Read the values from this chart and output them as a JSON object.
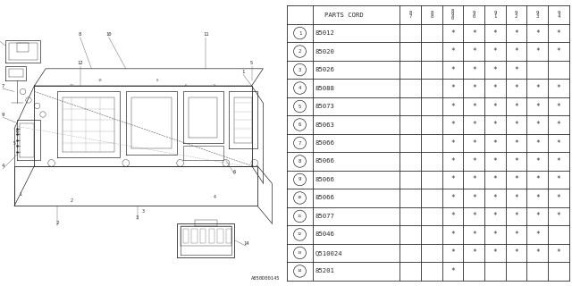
{
  "diagram_label": "A850D00145",
  "rows": [
    {
      "num": 1,
      "part": "85012",
      "marks": [
        0,
        0,
        1,
        1,
        1,
        1,
        1,
        1
      ]
    },
    {
      "num": 2,
      "part": "85020",
      "marks": [
        0,
        0,
        1,
        1,
        1,
        1,
        1,
        1
      ]
    },
    {
      "num": 3,
      "part": "85026",
      "marks": [
        0,
        0,
        1,
        1,
        1,
        1,
        0,
        0
      ]
    },
    {
      "num": 4,
      "part": "85088",
      "marks": [
        0,
        0,
        1,
        1,
        1,
        1,
        1,
        1
      ]
    },
    {
      "num": 5,
      "part": "85073",
      "marks": [
        0,
        0,
        1,
        1,
        1,
        1,
        1,
        1
      ]
    },
    {
      "num": 6,
      "part": "85063",
      "marks": [
        0,
        0,
        1,
        1,
        1,
        1,
        1,
        1
      ]
    },
    {
      "num": 7,
      "part": "85066",
      "marks": [
        0,
        0,
        1,
        1,
        1,
        1,
        1,
        1
      ]
    },
    {
      "num": 8,
      "part": "85066",
      "marks": [
        0,
        0,
        1,
        1,
        1,
        1,
        1,
        1
      ]
    },
    {
      "num": 9,
      "part": "85066",
      "marks": [
        0,
        0,
        1,
        1,
        1,
        1,
        1,
        1
      ]
    },
    {
      "num": 10,
      "part": "85066",
      "marks": [
        0,
        0,
        1,
        1,
        1,
        1,
        1,
        1
      ]
    },
    {
      "num": 11,
      "part": "85077",
      "marks": [
        0,
        0,
        1,
        1,
        1,
        1,
        1,
        1
      ]
    },
    {
      "num": 12,
      "part": "85046",
      "marks": [
        0,
        0,
        1,
        1,
        1,
        1,
        1,
        0
      ]
    },
    {
      "num": 13,
      "part": "Q510024",
      "marks": [
        0,
        0,
        1,
        1,
        1,
        1,
        1,
        1
      ]
    },
    {
      "num": 14,
      "part": "85201",
      "marks": [
        0,
        0,
        1,
        0,
        0,
        0,
        0,
        0
      ]
    }
  ],
  "year_headers": [
    "8\n7",
    "8\n8",
    "8\n9\n0",
    "9\n0",
    "9\n1",
    "9\n2",
    "9\n3",
    "9\n4"
  ],
  "bg_color": "#ffffff",
  "line_color": "#2a2a2a",
  "gray_color": "#888888"
}
